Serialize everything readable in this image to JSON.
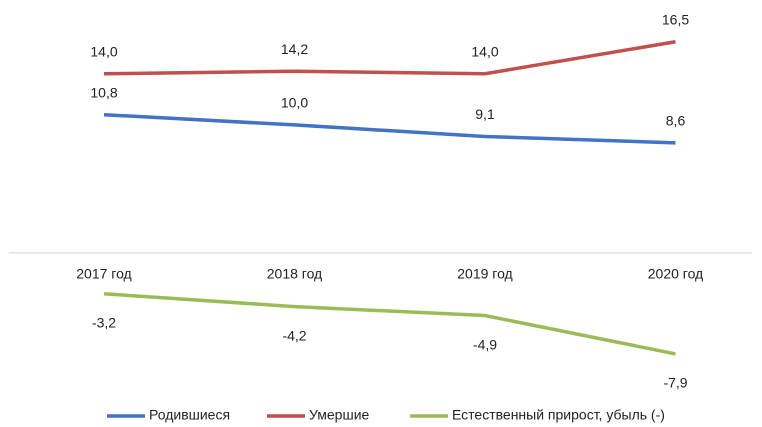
{
  "chart_data": {
    "type": "line",
    "categories": [
      "2017 год",
      "2018 год",
      "2019 год",
      "2020 год"
    ],
    "series": [
      {
        "name": "Родившиеся",
        "color": "#4472c4",
        "values": [
          10.8,
          10.0,
          9.1,
          8.6
        ],
        "value_labels": [
          "10,8",
          "10,0",
          "9,1",
          "8,6"
        ]
      },
      {
        "name": "Умершие",
        "color": "#c0504d",
        "values": [
          14.0,
          14.2,
          14.0,
          16.5
        ],
        "value_labels": [
          "14,0",
          "14,2",
          "14,0",
          "16,5"
        ]
      },
      {
        "name": "Естественный прирост, убыль (-)",
        "color": "#9bbb59",
        "values": [
          -3.2,
          -4.2,
          -4.9,
          -7.9
        ],
        "value_labels": [
          "-3,2",
          "-4,2",
          "-4,9",
          "-7,9"
        ]
      }
    ],
    "ylim": [
      -9,
      19.5
    ],
    "legend": "bottom"
  }
}
